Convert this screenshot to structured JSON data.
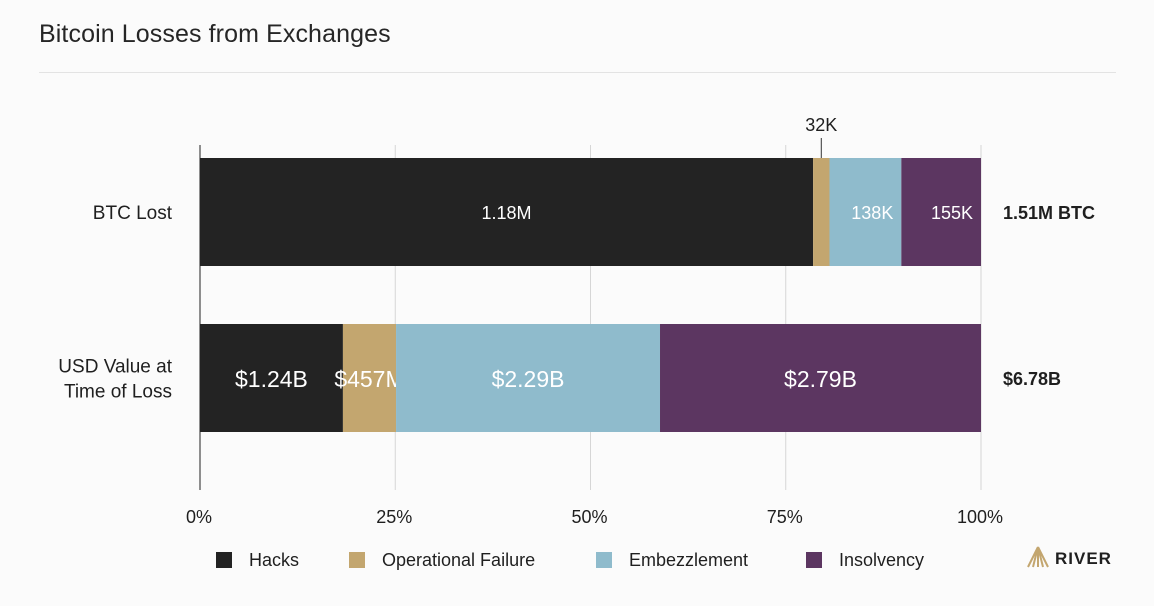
{
  "title": "Bitcoin Losses from Exchanges",
  "colors": {
    "hacks": "#232323",
    "operational_failure": "#c3a66f",
    "embezzlement": "#8fbbcc",
    "insolvency": "#5c3661",
    "grid": "#d6d6d6",
    "text": "#1f1f1f",
    "brand_accent": "#c3a66f"
  },
  "brand": {
    "logo_icon": "river-mountain-icon",
    "name": "RIVER"
  },
  "chart_data": {
    "type": "bar",
    "orientation": "horizontal",
    "stacked": "percent",
    "title": "Bitcoin Losses from Exchanges",
    "categories": [
      "BTC Lost",
      "USD Value at Time of Loss"
    ],
    "series": [
      {
        "name": "Hacks",
        "color": "#232323",
        "values": [
          78.5,
          18.3
        ],
        "labels": [
          "1.18M",
          "$1.24B"
        ]
      },
      {
        "name": "Operational Failure",
        "color": "#c3a66f",
        "values": [
          2.1,
          6.8
        ],
        "labels": [
          "32K",
          "$457M"
        ]
      },
      {
        "name": "Embezzlement",
        "color": "#8fbbcc",
        "values": [
          9.2,
          33.8
        ],
        "labels": [
          "138K",
          "$2.29B"
        ]
      },
      {
        "name": "Insolvency",
        "color": "#5c3661",
        "values": [
          10.2,
          41.1
        ],
        "labels": [
          "155K",
          "$2.79B"
        ]
      }
    ],
    "totals": [
      "1.51M BTC",
      "$6.78B"
    ],
    "xlim": [
      0,
      100
    ],
    "xticks": [
      0,
      25,
      50,
      75,
      100
    ],
    "xtick_labels": [
      "0%",
      "25%",
      "50%",
      "75%",
      "100%"
    ],
    "grid": true,
    "legend_position": "bottom"
  }
}
